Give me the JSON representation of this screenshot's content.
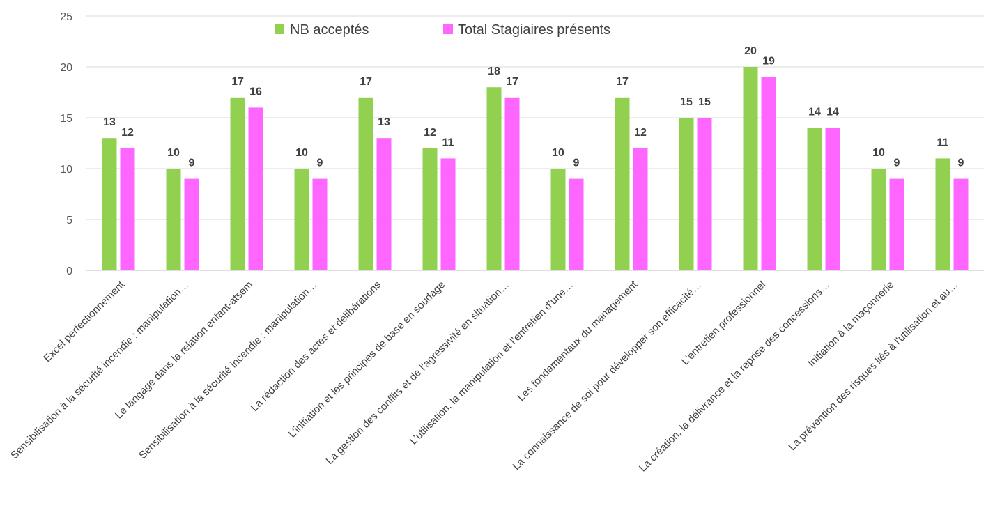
{
  "chart_data": {
    "type": "bar",
    "title": "",
    "xlabel": "",
    "ylabel": "",
    "ylim": [
      0,
      25
    ],
    "yticks": [
      0,
      5,
      10,
      15,
      20,
      25
    ],
    "grid": true,
    "legend_position": "top",
    "categories": [
      "Excel perfectionnement",
      "Sensibilisation à la sécurité incendie : manipulation…",
      "Le langage dans la relation enfant-atsem",
      "Sensibilisation à la sécurité incendie : manipulation…",
      "La rédaction des actes et délibérations",
      "L’initiation et les principes de base en soudage",
      "La gestion des conflits et de l’agressivité en situation…",
      "L’utilisation, la manipulation et l’entretien d’une…",
      "Les fondamentaux du management",
      "La connaissance de soi pour développer son efficacité…",
      "L'entretien professionnel",
      "La création, la délivrance et la reprise des concessions…",
      "Initiation à la maçonnerie",
      "La prévention des risques liés à l'utilisation et au…"
    ],
    "series": [
      {
        "name": "NB acceptés",
        "color": "#92D050",
        "values": [
          13,
          10,
          17,
          10,
          17,
          12,
          18,
          10,
          17,
          15,
          20,
          14,
          10,
          11
        ]
      },
      {
        "name": "Total Stagiaires présents",
        "color": "#FF66FF",
        "values": [
          12,
          9,
          16,
          9,
          13,
          11,
          17,
          9,
          12,
          15,
          19,
          14,
          9,
          9
        ]
      }
    ]
  }
}
